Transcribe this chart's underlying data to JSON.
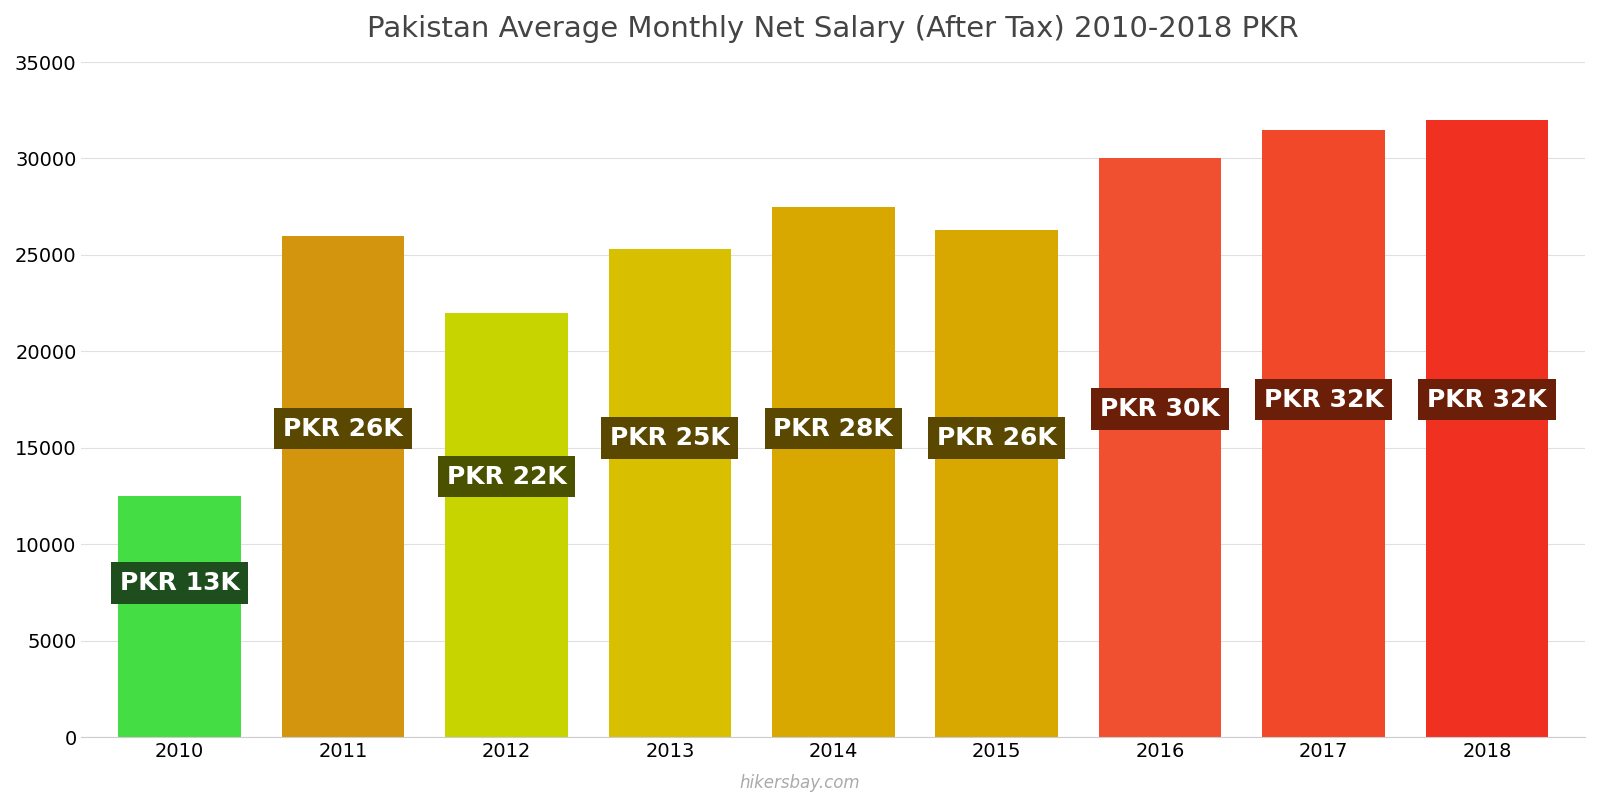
{
  "title": "Pakistan Average Monthly Net Salary (After Tax) 2010-2018 PKR",
  "years": [
    2010,
    2011,
    2012,
    2013,
    2014,
    2015,
    2016,
    2017,
    2018
  ],
  "values": [
    12500,
    26000,
    22000,
    25300,
    27500,
    26300,
    30000,
    31500,
    32000
  ],
  "bar_colors": [
    "#44dd44",
    "#d4950e",
    "#c8d400",
    "#d8c000",
    "#d8a800",
    "#d8a800",
    "#f05030",
    "#f04828",
    "#f03020"
  ],
  "labels": [
    "PKR 13K",
    "PKR 26K",
    "PKR 22K",
    "PKR 25K",
    "PKR 28K",
    "PKR 26K",
    "PKR 30K",
    "PKR 32K",
    "PKR 32K"
  ],
  "label_bg_colors": [
    "#1e4d1e",
    "#5a4800",
    "#4a5200",
    "#5a4800",
    "#5a4800",
    "#5a4800",
    "#6b1e08",
    "#6b1e08",
    "#6b1e08"
  ],
  "ylim": [
    0,
    35000
  ],
  "yticks": [
    0,
    5000,
    10000,
    15000,
    20000,
    25000,
    30000,
    35000
  ],
  "watermark": "hikersbay.com",
  "background_color": "#ffffff",
  "title_fontsize": 21,
  "label_fontsize": 18,
  "tick_fontsize": 14,
  "bar_width": 0.75,
  "label_y_positions": [
    8000,
    16000,
    13500,
    15500,
    16000,
    15500,
    17000,
    17500,
    17500
  ]
}
